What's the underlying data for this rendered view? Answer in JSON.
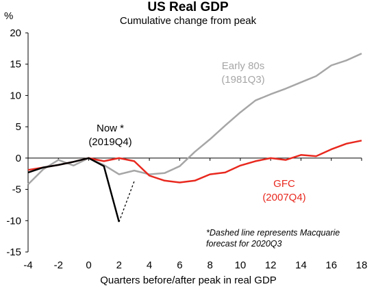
{
  "chart_data": {
    "type": "line",
    "title": "US Real GDP",
    "subtitle": "Cumulative change from peak",
    "ylabel": "%",
    "xlabel": "Quarters before/after peak in real GDP",
    "xlim": [
      -4,
      18
    ],
    "ylim": [
      -15,
      20
    ],
    "xticks": [
      -4,
      -2,
      0,
      2,
      4,
      6,
      8,
      10,
      12,
      14,
      16,
      18
    ],
    "yticks": [
      -15,
      -10,
      -5,
      0,
      5,
      10,
      15,
      20
    ],
    "grid": false,
    "series": [
      {
        "name": "Early 80s (1981Q3)",
        "label_lines": [
          "Early 80s",
          "(1981Q3)"
        ],
        "color": "#a6a6a6",
        "dashed": false,
        "x": [
          -4,
          -3,
          -2,
          -1,
          0,
          1,
          2,
          3,
          4,
          5,
          6,
          7,
          8,
          9,
          10,
          11,
          12,
          13,
          14,
          15,
          16,
          17,
          18
        ],
        "values": [
          -4.2,
          -1.8,
          -0.3,
          -1.2,
          0.0,
          -1.1,
          -2.6,
          -2.0,
          -2.6,
          -2.4,
          -1.3,
          1.0,
          3.0,
          5.2,
          7.3,
          9.2,
          10.2,
          11.1,
          12.1,
          13.1,
          14.8,
          15.6,
          16.7
        ]
      },
      {
        "name": "GFC (2007Q4)",
        "label_lines": [
          "GFC",
          "(2007Q4)"
        ],
        "color": "#e8281e",
        "dashed": false,
        "x": [
          -4,
          -3,
          -2,
          -1,
          0,
          1,
          2,
          3,
          4,
          5,
          6,
          7,
          8,
          9,
          10,
          11,
          12,
          13,
          14,
          15,
          16,
          17,
          18
        ],
        "values": [
          -1.9,
          -1.5,
          -1.1,
          -0.6,
          0.0,
          -0.5,
          0.0,
          -0.5,
          -2.8,
          -3.6,
          -3.9,
          -3.6,
          -2.6,
          -2.3,
          -1.2,
          -0.5,
          0.0,
          -0.3,
          0.5,
          0.3,
          1.4,
          2.3,
          2.8
        ]
      },
      {
        "name": "Now * (2019Q4)",
        "label_lines": [
          "Now *",
          "(2019Q4)"
        ],
        "color": "#000000",
        "dashed": false,
        "x": [
          -4,
          -3,
          -2,
          -1,
          0,
          1,
          2
        ],
        "values": [
          -2.3,
          -1.5,
          -1.1,
          -0.6,
          0.0,
          -1.3,
          -10.2
        ]
      },
      {
        "name": "Macquarie forecast 2020Q3",
        "label_lines": [],
        "color": "#000000",
        "dashed": true,
        "x": [
          2,
          3
        ],
        "values": [
          -10.2,
          -3.7
        ]
      }
    ],
    "annotations": [
      {
        "lines": [
          "*Dashed line represents Macquarie",
          "forecast for 2020Q3"
        ],
        "italic": true
      }
    ]
  }
}
